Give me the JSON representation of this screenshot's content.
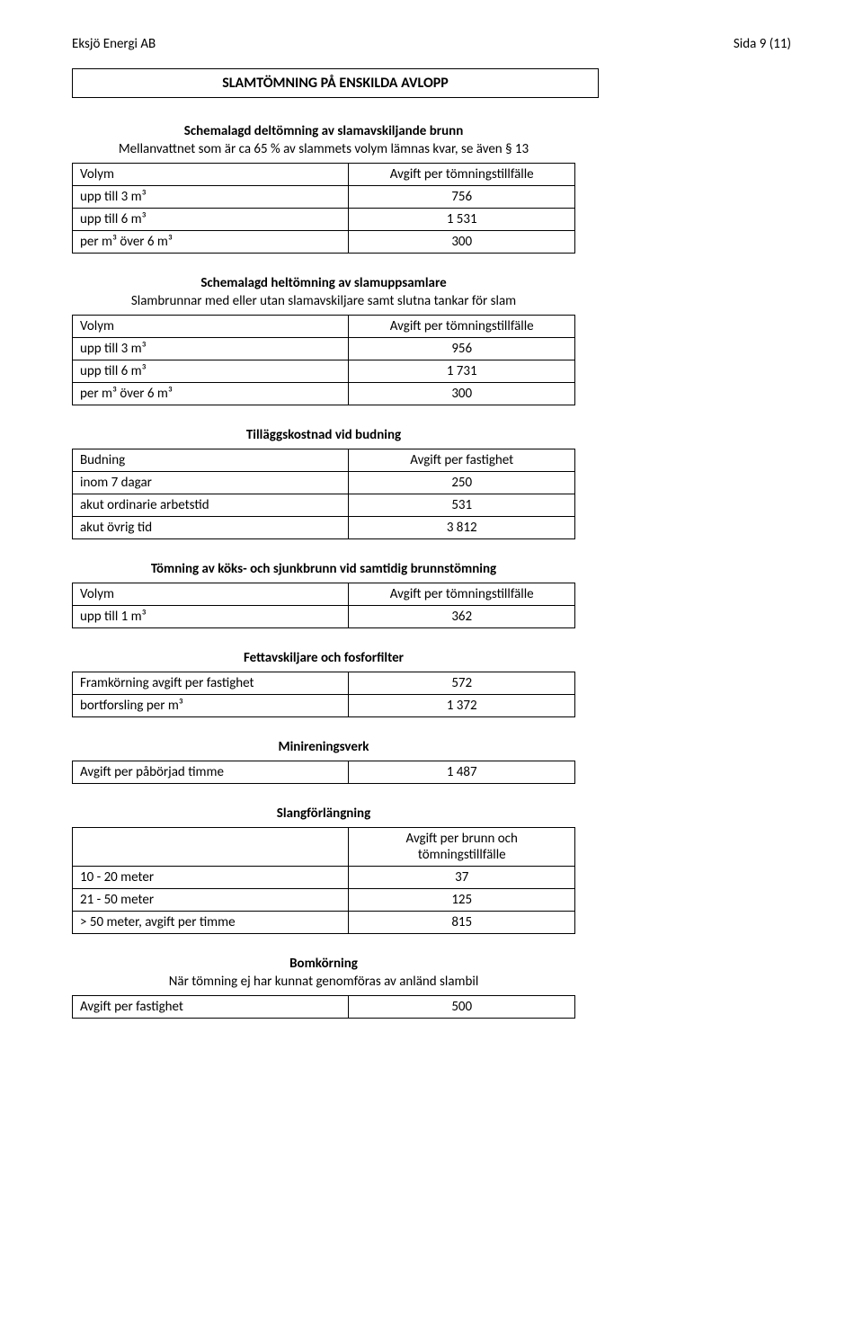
{
  "header": {
    "company": "Eksjö Energi AB",
    "page_label": "Sida 9 (11)"
  },
  "title": "SLAMTÖMNING PÅ ENSKILDA AVLOPP",
  "sections": [
    {
      "heading": "Schemalagd deltömning av slamavskiljande brunn",
      "sub": "Mellanvattnet som är ca 65 % av slammets volym lämnas kvar, se även § 13",
      "col_left": "Volym",
      "col_right": "Avgift per tömningstillfälle",
      "rows": [
        {
          "label": "upp till 3 m³",
          "value": "756"
        },
        {
          "label": "upp till 6 m³",
          "value": "1 531"
        },
        {
          "label": "per m³ över 6 m³",
          "value": "300"
        }
      ]
    },
    {
      "heading": "Schemalagd heltömning av slamuppsamlare",
      "sub": "Slambrunnar med eller utan slamavskiljare samt slutna tankar för slam",
      "col_left": "Volym",
      "col_right": "Avgift per tömningstillfälle",
      "rows": [
        {
          "label": "upp till 3 m³",
          "value": "956"
        },
        {
          "label": "upp till 6 m³",
          "value": "1 731"
        },
        {
          "label": "per m³ över 6 m³",
          "value": "300"
        }
      ]
    },
    {
      "heading": "Tilläggskostnad vid budning",
      "col_left": "Budning",
      "col_right": "Avgift per fastighet",
      "rows": [
        {
          "label": "inom 7 dagar",
          "value": "250"
        },
        {
          "label": "akut ordinarie arbetstid",
          "value": "531"
        },
        {
          "label": "akut övrig tid",
          "value": "3 812"
        }
      ]
    },
    {
      "heading": "Tömning av köks- och sjunkbrunn vid samtidig brunnstömning",
      "col_left": "Volym",
      "col_right": "Avgift per tömningstillfälle",
      "rows": [
        {
          "label": "upp till 1 m³",
          "value": "362"
        }
      ]
    },
    {
      "heading": "Fettavskiljare och fosforfilter",
      "rows": [
        {
          "label": "Framkörning avgift per fastighet",
          "value": "572"
        },
        {
          "label": "bortforsling per m³",
          "value": "1 372"
        }
      ]
    },
    {
      "heading": "Minireningsverk",
      "rows": [
        {
          "label": "Avgift per påbörjad timme",
          "value": "1 487"
        }
      ]
    },
    {
      "heading": "Slangförlängning",
      "col_right_line1": "Avgift per brunn och",
      "col_right_line2": "tömningstillfälle",
      "rows": [
        {
          "label": "10 - 20 meter",
          "value": "37"
        },
        {
          "label": "21 - 50 meter",
          "value": "125"
        },
        {
          "label": "> 50 meter, avgift per timme",
          "value": "815"
        }
      ]
    },
    {
      "heading": "Bomkörning",
      "sub": "När tömning ej har kunnat genomföras av anländ slambil",
      "rows": [
        {
          "label": "Avgift per fastighet",
          "value": "500"
        }
      ]
    }
  ]
}
